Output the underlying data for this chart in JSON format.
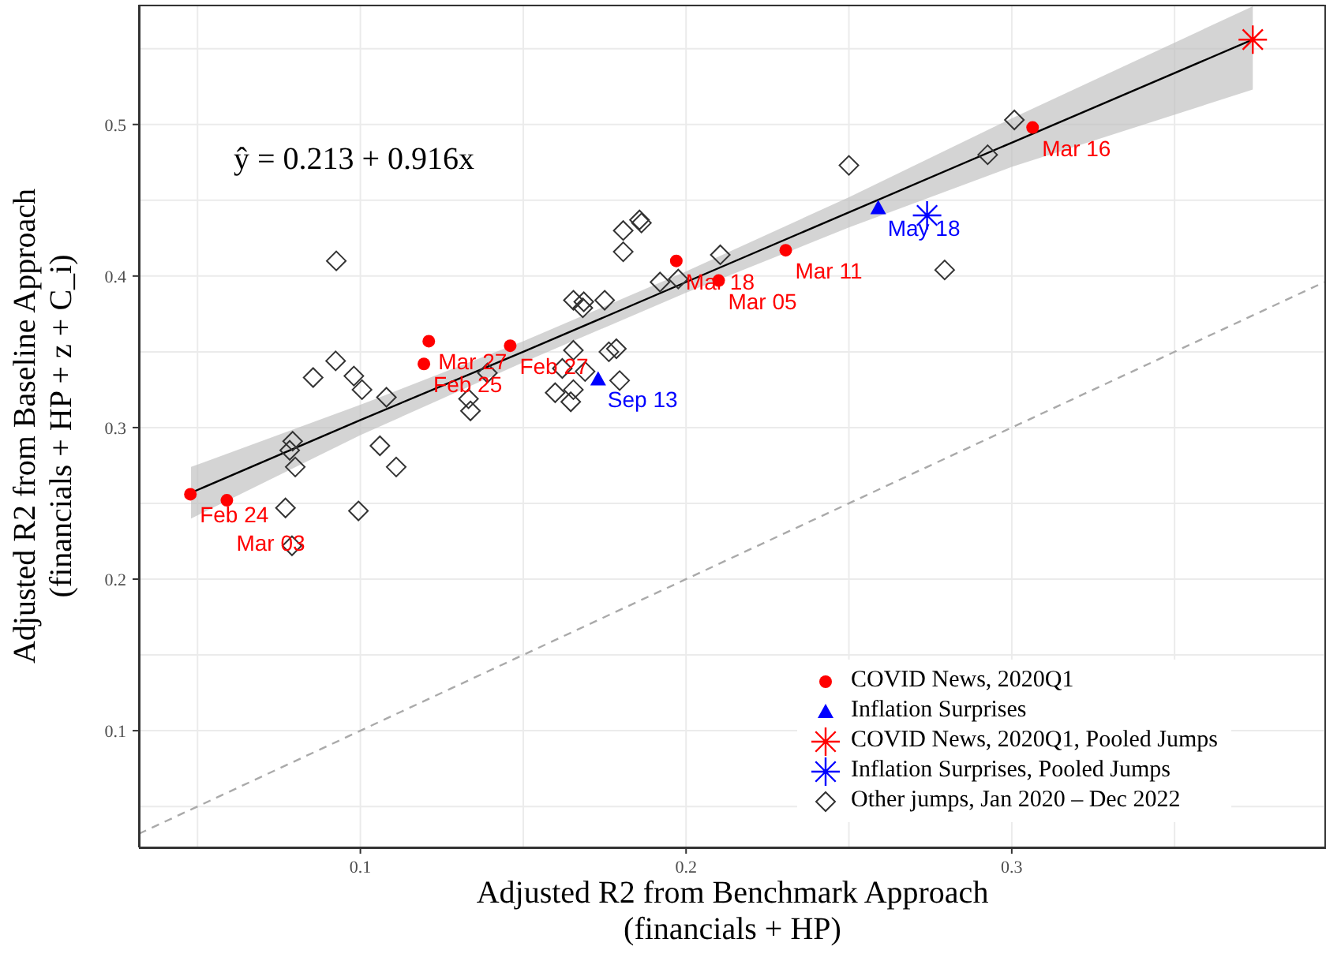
{
  "chart_data": {
    "type": "scatter",
    "xlabel": "Adjusted R2 from Benchmark Approach\n(financials + HP)",
    "ylabel": "Adjusted R2 from Baseline Approach\n(financials + HP + z + C_i)",
    "annotations": [
      "ŷ = 0.213 + 0.916x"
    ],
    "xlim": [
      0.032,
      0.396
    ],
    "ylim": [
      0.023,
      0.579
    ],
    "xticks": [
      {
        "value": 0.05,
        "label": null
      },
      0.1,
      {
        "value": 0.15,
        "label": null
      },
      0.2,
      {
        "value": 0.25,
        "label": null
      },
      0.3,
      {
        "value": 0.35,
        "label": null
      }
    ],
    "yticks": [
      {
        "value": 0.05,
        "label": null
      },
      0.1,
      {
        "value": 0.15,
        "label": null
      },
      0.2,
      {
        "value": 0.25,
        "label": null
      },
      0.3,
      {
        "value": 0.35,
        "label": null
      },
      0.4,
      {
        "value": 0.45,
        "label": null
      },
      0.5,
      {
        "value": 0.55,
        "label": null
      }
    ],
    "grid": true,
    "legend": "bottom right",
    "series": [
      {
        "type": "line",
        "color": "#aaaaaa",
        "line_style": "dashed",
        "marker": "none",
        "x": [
          0.032,
          0.396
        ],
        "values": [
          0.032,
          0.396
        ]
      },
      {
        "type": "line",
        "color": "#000000",
        "line_style": "solid",
        "marker": "none",
        "x": [
          0.048,
          0.1,
          0.15,
          0.2,
          0.25,
          0.3,
          0.374
        ],
        "values": [
          0.257,
          0.305,
          0.35,
          0.396,
          0.442,
          0.488,
          0.556
        ],
        "lower": [
          0.24,
          0.295,
          0.343,
          0.389,
          0.432,
          0.472,
          0.523
        ],
        "upper": [
          0.274,
          0.315,
          0.357,
          0.403,
          0.452,
          0.504,
          0.578
        ]
      },
      {
        "name": "COVID News, 2020Q1",
        "color": "#ff0000",
        "marker": "circle",
        "x": [
          0.0478,
          0.059,
          0.121,
          0.1195,
          0.146,
          0.197,
          0.21,
          0.2306,
          0.3064
        ],
        "values": [
          0.256,
          0.252,
          0.357,
          0.342,
          0.354,
          0.41,
          0.397,
          0.417,
          0.498
        ],
        "value_labels": [
          "Feb 24",
          "Mar 03",
          "Mar 27",
          "Feb 25",
          "Feb 27",
          "Mar 18",
          "Mar 05",
          "Mar 11",
          "Mar 16"
        ]
      },
      {
        "name": "Inflation Surprises",
        "color": "#0000ff",
        "marker": "triangle",
        "x": [
          0.173,
          0.259
        ],
        "values": [
          0.332,
          0.445
        ],
        "value_labels": [
          "Sep 13",
          "May 18"
        ]
      },
      {
        "name": "COVID News, 2020Q1, Pooled Jumps",
        "color": "#ff0000",
        "marker": "cross",
        "x": [
          0.374
        ],
        "values": [
          0.556
        ]
      },
      {
        "name": "Inflation Surprises, Pooled Jumps",
        "color": "#0000ff",
        "marker": "cross",
        "x": [
          0.274
        ],
        "values": [
          0.44
        ]
      },
      {
        "name": "Other jumps, Jan 2020 – Dec 2022",
        "color": "#333333",
        "marker": "diamond",
        "x": [
          0.0926,
          0.0924,
          0.0855,
          0.098,
          0.1005,
          0.108,
          0.139,
          0.1332,
          0.1338,
          0.0792,
          0.0783,
          0.08,
          0.106,
          0.111,
          0.077,
          0.0994,
          0.079,
          0.25,
          0.1807,
          0.1807,
          0.1857,
          0.1863,
          0.2105,
          0.192,
          0.1976,
          0.1654,
          0.1686,
          0.1683,
          0.175,
          0.1654,
          0.162,
          0.169,
          0.1763,
          0.1786,
          0.1796,
          0.1598,
          0.1654,
          0.1646,
          0.3008,
          0.2926,
          0.2794
        ],
        "values": [
          0.41,
          0.344,
          0.333,
          0.334,
          0.325,
          0.32,
          0.336,
          0.319,
          0.311,
          0.291,
          0.285,
          0.274,
          0.288,
          0.274,
          0.247,
          0.245,
          0.222,
          0.473,
          0.43,
          0.416,
          0.437,
          0.435,
          0.414,
          0.396,
          0.398,
          0.384,
          0.383,
          0.379,
          0.384,
          0.351,
          0.339,
          0.337,
          0.35,
          0.352,
          0.331,
          0.323,
          0.325,
          0.317,
          0.503,
          0.48,
          0.404
        ]
      }
    ]
  }
}
